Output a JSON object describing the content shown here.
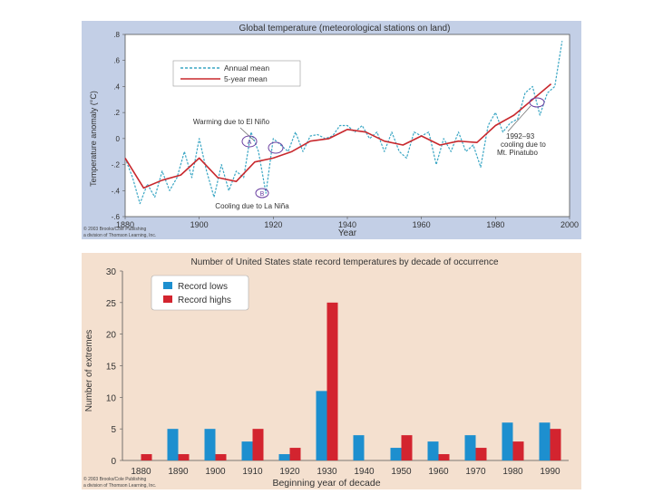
{
  "charts": {
    "global": {
      "title": "Global temperature (meteorological stations on land)",
      "ylabel": "Temperature anomaly (°C)",
      "xlabel": "Year",
      "yticks": [
        ".8",
        ".6",
        ".4",
        ".2",
        "0",
        "-.2",
        "-.4",
        "-.6"
      ],
      "xticks": [
        "1880",
        "1900",
        "1920",
        "1940",
        "1960",
        "1980",
        "2000"
      ],
      "legend": {
        "annual": "Annual mean",
        "fiveyear": "5-year mean"
      },
      "annotations": {
        "warming": "Warming due to El Niño",
        "cooling": "Cooling due to La Niña",
        "pinatubo_1": "1992–93",
        "pinatubo_2": "cooling due to",
        "pinatubo_3": "Mt. Pinatubo",
        "marker_a": "A",
        "marker_b": "B"
      },
      "credit_1": "© 2003 Brooks/Cole Publishing",
      "credit_2": "a division of Thomson Learning, Inc.",
      "colors": {
        "annual": "#3aa6c4",
        "fiveyear": "#c8282d"
      }
    },
    "records": {
      "title": "Number of United States state record temperatures by decade of occurrence",
      "ylabel": "Number of extremes",
      "xlabel": "Beginning year of decade",
      "legend": {
        "lows": "Record lows",
        "highs": "Record highs"
      },
      "credit_1": "© 2003 Brooks/Cole Publishing",
      "credit_2": "a division of Thomson Learning, Inc.",
      "colors": {
        "lows": "#1d8fcf",
        "highs": "#d3242f"
      }
    }
  },
  "chart_data": [
    {
      "type": "line",
      "title": "Global temperature (meteorological stations on land)",
      "xlabel": "Year",
      "ylabel": "Temperature anomaly (°C)",
      "xlim": [
        1880,
        2000
      ],
      "ylim": [
        -0.6,
        0.8
      ],
      "series": [
        {
          "name": "Annual mean",
          "x": [
            1880,
            1882,
            1884,
            1886,
            1888,
            1890,
            1892,
            1894,
            1896,
            1898,
            1900,
            1902,
            1904,
            1906,
            1908,
            1910,
            1912,
            1914,
            1916,
            1918,
            1920,
            1922,
            1924,
            1926,
            1928,
            1930,
            1932,
            1934,
            1936,
            1938,
            1940,
            1942,
            1944,
            1946,
            1948,
            1950,
            1952,
            1954,
            1956,
            1958,
            1960,
            1962,
            1964,
            1966,
            1968,
            1970,
            1972,
            1974,
            1976,
            1978,
            1980,
            1982,
            1984,
            1986,
            1988,
            1990,
            1992,
            1994,
            1996,
            1998
          ],
          "values": [
            -0.15,
            -0.3,
            -0.5,
            -0.35,
            -0.45,
            -0.25,
            -0.4,
            -0.3,
            -0.1,
            -0.3,
            0.0,
            -0.25,
            -0.45,
            -0.2,
            -0.4,
            -0.25,
            -0.3,
            0.05,
            -0.1,
            -0.42,
            0.0,
            -0.05,
            -0.1,
            0.05,
            -0.1,
            0.02,
            0.03,
            0.0,
            0.02,
            0.1,
            0.1,
            0.05,
            0.1,
            0.0,
            0.05,
            -0.1,
            0.05,
            -0.1,
            -0.15,
            0.05,
            0.02,
            0.05,
            -0.2,
            0.0,
            -0.1,
            0.05,
            -0.1,
            -0.05,
            -0.22,
            0.1,
            0.2,
            0.05,
            0.12,
            0.15,
            0.35,
            0.4,
            0.18,
            0.35,
            0.4,
            0.75
          ]
        },
        {
          "name": "5-year mean",
          "x": [
            1880,
            1885,
            1890,
            1895,
            1900,
            1905,
            1910,
            1915,
            1920,
            1925,
            1930,
            1935,
            1940,
            1945,
            1950,
            1955,
            1960,
            1965,
            1970,
            1975,
            1980,
            1985,
            1990,
            1995
          ],
          "values": [
            -0.15,
            -0.38,
            -0.32,
            -0.28,
            -0.15,
            -0.3,
            -0.33,
            -0.18,
            -0.15,
            -0.1,
            -0.02,
            0.0,
            0.07,
            0.05,
            -0.02,
            -0.05,
            0.02,
            -0.05,
            -0.02,
            -0.03,
            0.1,
            0.18,
            0.3,
            0.42
          ]
        }
      ]
    },
    {
      "type": "bar",
      "title": "Number of United States state record temperatures by decade of occurrence",
      "xlabel": "Beginning year of decade",
      "ylabel": "Number of extremes",
      "ylim": [
        0,
        30
      ],
      "yticks": [
        0,
        5,
        10,
        15,
        20,
        25,
        30
      ],
      "categories": [
        "1880",
        "1890",
        "1900",
        "1910",
        "1920",
        "1930",
        "1940",
        "1950",
        "1960",
        "1970",
        "1980",
        "1990"
      ],
      "series": [
        {
          "name": "Record lows",
          "values": [
            0,
            5,
            5,
            3,
            1,
            11,
            4,
            2,
            3,
            4,
            6,
            6
          ]
        },
        {
          "name": "Record highs",
          "values": [
            1,
            1,
            1,
            5,
            2,
            25,
            0,
            4,
            1,
            2,
            3,
            5
          ]
        }
      ]
    }
  ]
}
